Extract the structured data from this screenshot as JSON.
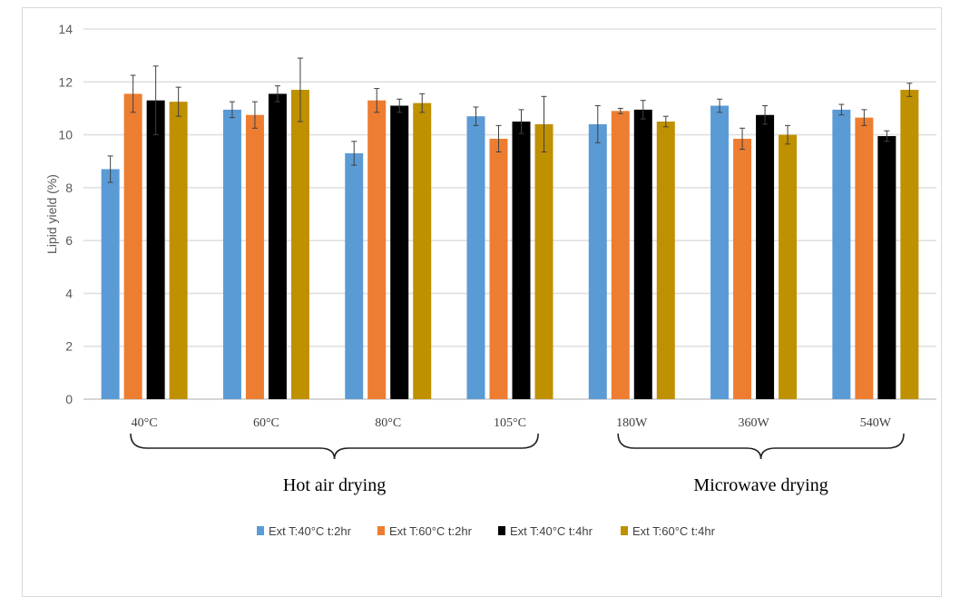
{
  "chart_data": {
    "type": "bar",
    "title": "",
    "xlabel": "",
    "ylabel": "Lipid yield (%)",
    "ylim": [
      0,
      14
    ],
    "yticks": [
      0,
      2,
      4,
      6,
      8,
      10,
      12,
      14
    ],
    "grid": true,
    "legend_position": "bottom",
    "categories": [
      "40°C",
      "60°C",
      "80°C",
      "105°C",
      "180W",
      "360W",
      "540W"
    ],
    "groups": [
      {
        "label": "Hot air drying",
        "from": 0,
        "to": 3
      },
      {
        "label": "Microwave drying",
        "from": 4,
        "to": 6
      }
    ],
    "series": [
      {
        "name": "Ext T:40°C t:2hr",
        "color": "#5b9bd5",
        "values": [
          8.7,
          10.95,
          9.3,
          10.7,
          10.4,
          11.1,
          10.95
        ],
        "errors": [
          0.5,
          0.3,
          0.45,
          0.35,
          0.7,
          0.25,
          0.2
        ]
      },
      {
        "name": "Ext T:60°C t:2hr",
        "color": "#ed7d31",
        "values": [
          11.55,
          10.75,
          11.3,
          9.85,
          10.9,
          9.85,
          10.65
        ],
        "errors": [
          0.7,
          0.5,
          0.45,
          0.5,
          0.1,
          0.4,
          0.3
        ]
      },
      {
        "name": "Ext T:40°C  t:4hr",
        "color": "#000000",
        "values": [
          11.3,
          11.55,
          11.1,
          10.5,
          10.95,
          10.75,
          9.95
        ],
        "errors": [
          1.3,
          0.3,
          0.25,
          0.45,
          0.35,
          0.35,
          0.2
        ]
      },
      {
        "name": "Ext T:60°C  t:4hr",
        "color": "#bf9000",
        "values": [
          11.25,
          11.7,
          11.2,
          10.4,
          10.5,
          10.0,
          11.7
        ],
        "errors": [
          0.55,
          1.2,
          0.35,
          1.05,
          0.2,
          0.35,
          0.25
        ]
      }
    ]
  }
}
